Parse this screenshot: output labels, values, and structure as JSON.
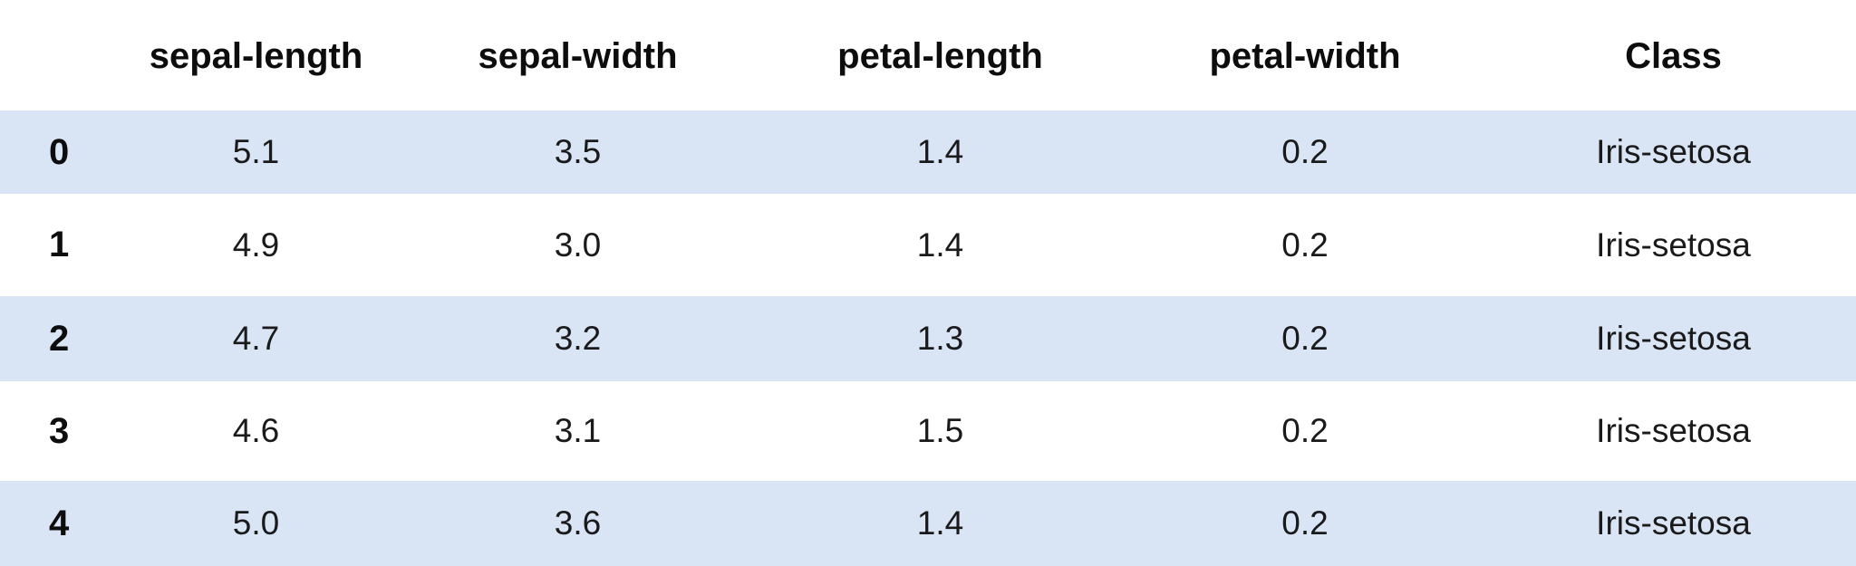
{
  "table": {
    "columns": [
      {
        "key": "index",
        "label": ""
      },
      {
        "key": "sepal_length",
        "label": "sepal-length"
      },
      {
        "key": "sepal_width",
        "label": "sepal-width"
      },
      {
        "key": "petal_length",
        "label": "petal-length"
      },
      {
        "key": "petal_width",
        "label": "petal-width"
      },
      {
        "key": "class",
        "label": "Class"
      }
    ],
    "rows": [
      {
        "index": "0",
        "sepal_length": "5.1",
        "sepal_width": "3.5",
        "petal_length": "1.4",
        "petal_width": "0.2",
        "class": "Iris-setosa"
      },
      {
        "index": "1",
        "sepal_length": "4.9",
        "sepal_width": "3.0",
        "petal_length": "1.4",
        "petal_width": "0.2",
        "class": "Iris-setosa"
      },
      {
        "index": "2",
        "sepal_length": "4.7",
        "sepal_width": "3.2",
        "petal_length": "1.3",
        "petal_width": "0.2",
        "class": "Iris-setosa"
      },
      {
        "index": "3",
        "sepal_length": "4.6",
        "sepal_width": "3.1",
        "petal_length": "1.5",
        "petal_width": "0.2",
        "class": "Iris-setosa"
      },
      {
        "index": "4",
        "sepal_length": "5.0",
        "sepal_width": "3.6",
        "petal_length": "1.4",
        "petal_width": "0.2",
        "class": "Iris-setosa"
      }
    ]
  },
  "colors": {
    "stripe": "#d9e4f5",
    "background": "#ffffff",
    "text": "#111111"
  }
}
